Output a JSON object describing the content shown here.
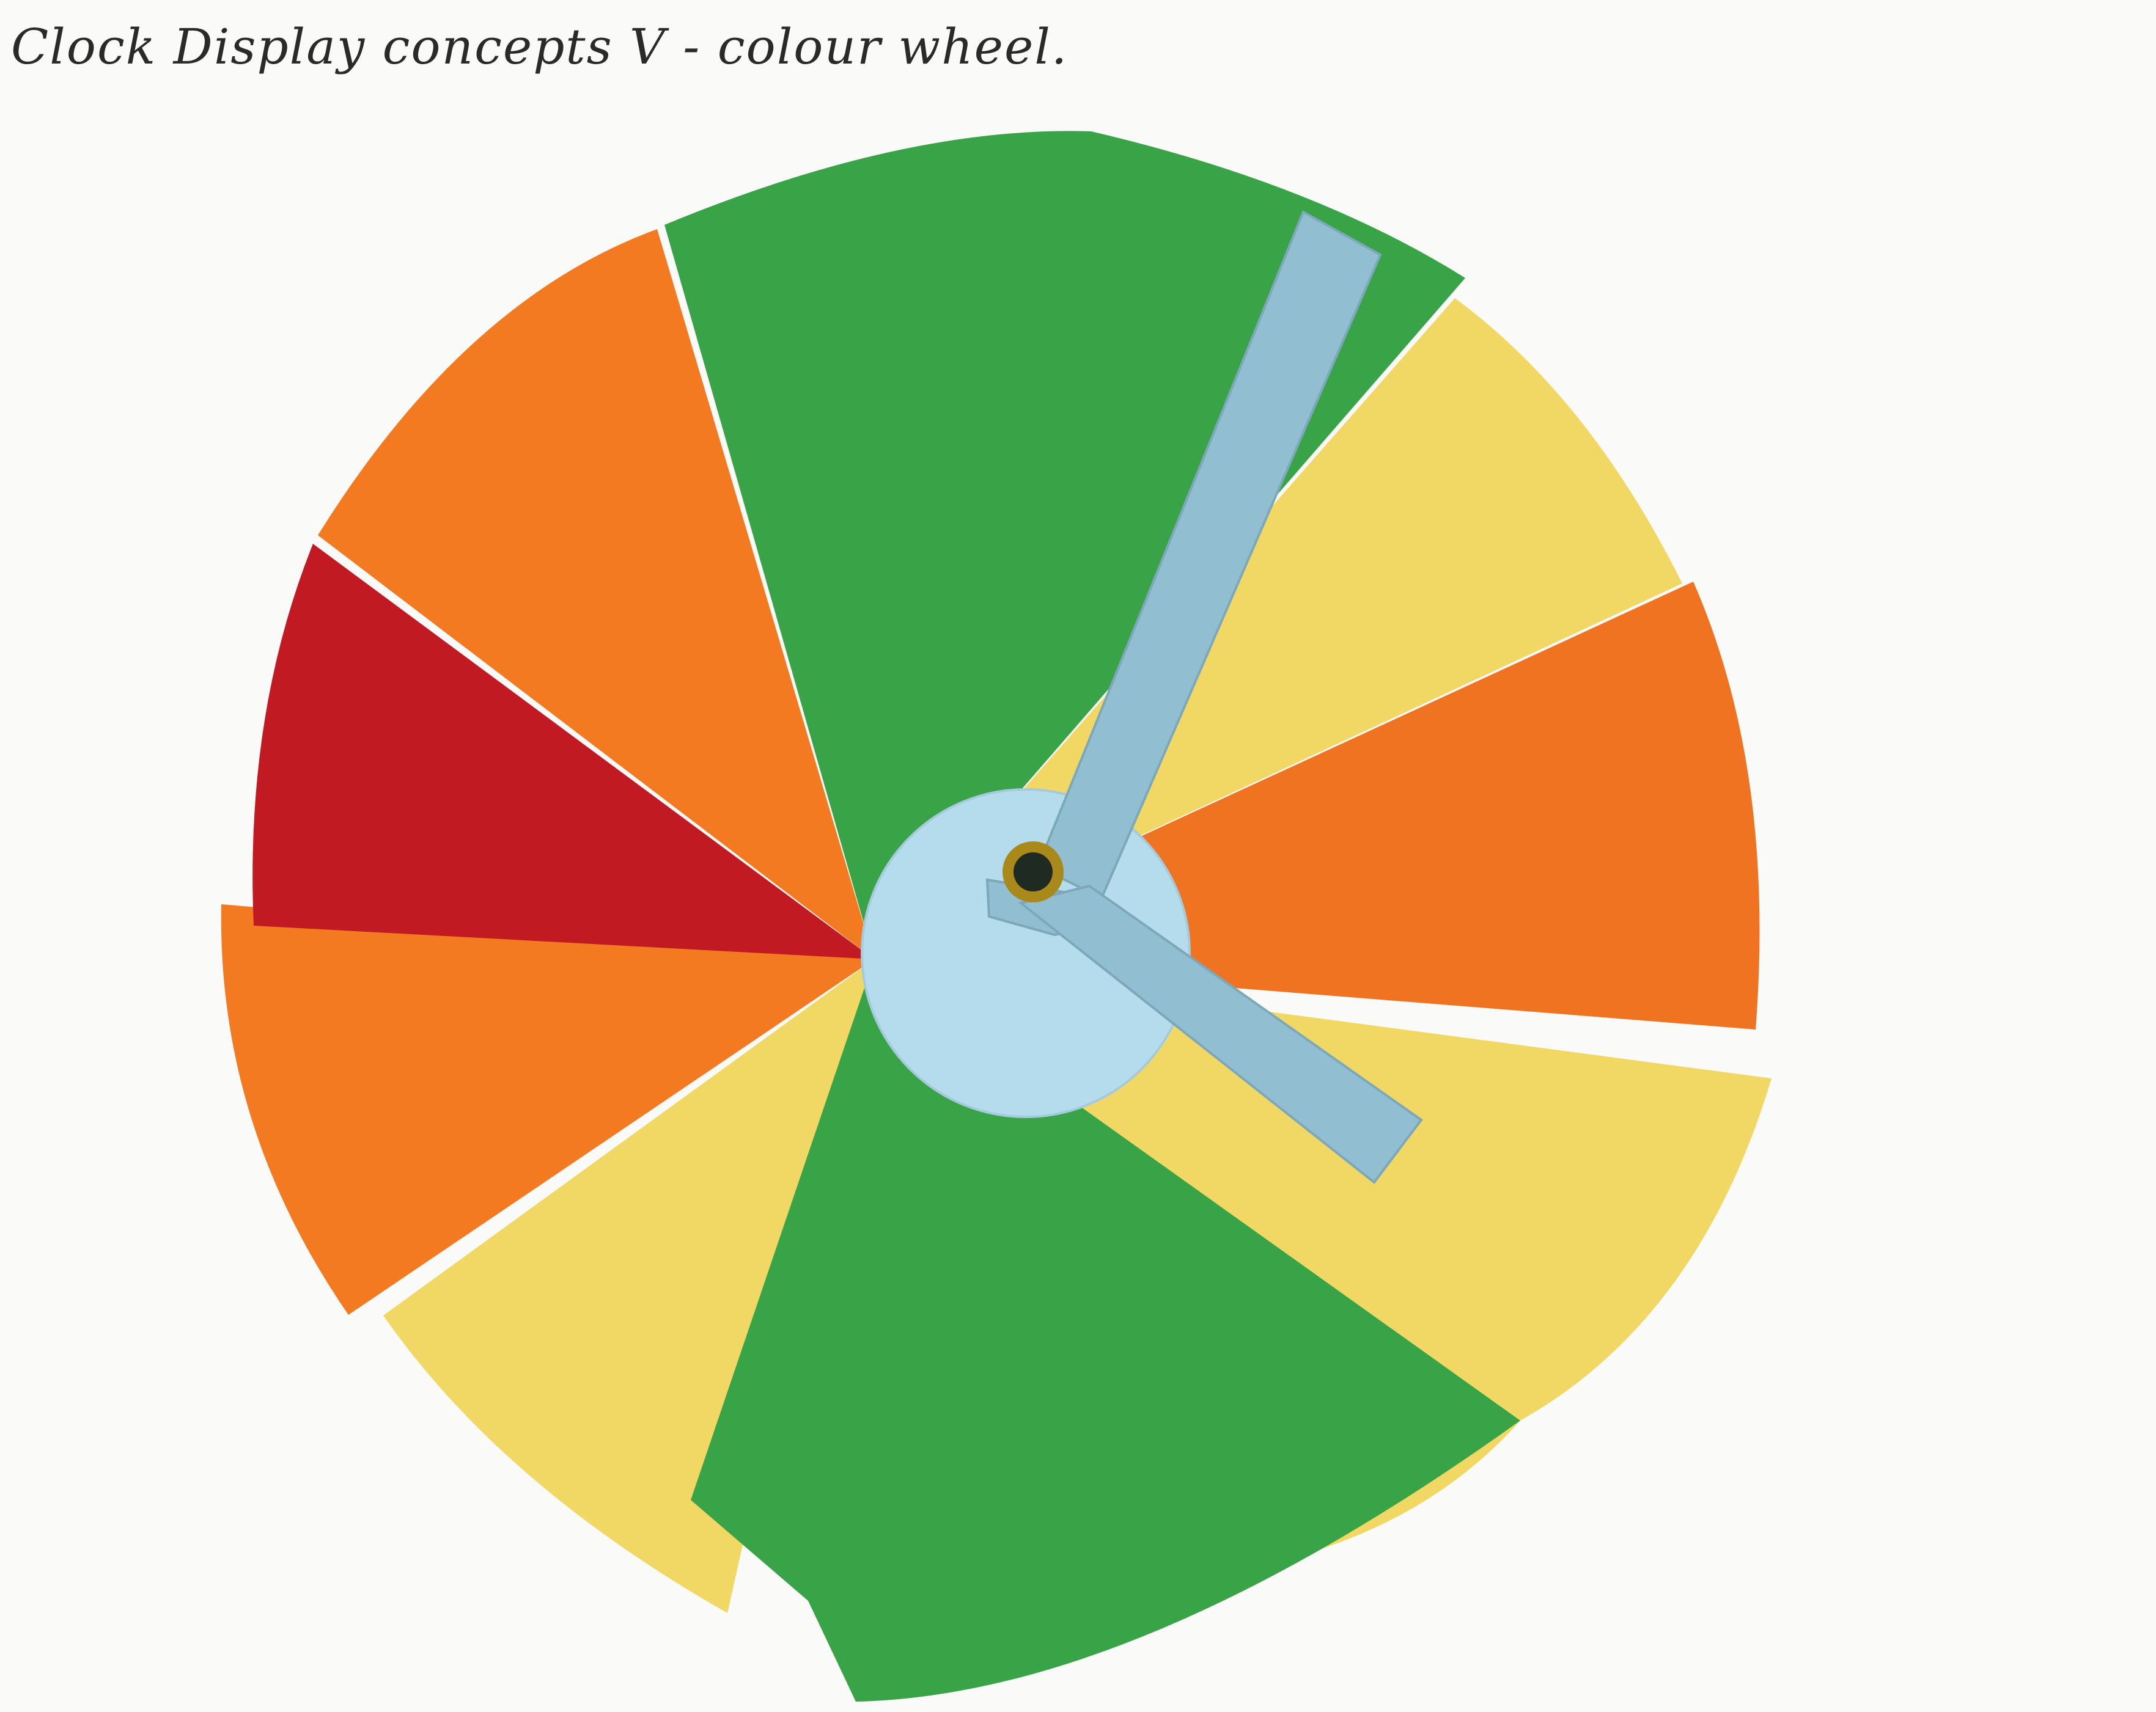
{
  "caption": "Clock Display concepts V - colour wheel.",
  "colors": {
    "background": "#fafaf8",
    "green": "#38a447",
    "orange": "#f47a22",
    "orange_alt": "#ef7320",
    "red": "#c21a22",
    "yellow": "#f1d865",
    "hub": "#b5dcec",
    "clock_hand": "#91bed0",
    "pivot_rivet": "#a8891a"
  },
  "wheel_segments": [
    {
      "id": "green-top",
      "color": "green"
    },
    {
      "id": "yellow-upper-right",
      "color": "yellow"
    },
    {
      "id": "orange-right",
      "color": "orange_alt"
    },
    {
      "id": "yellow-lower-right",
      "color": "yellow"
    },
    {
      "id": "green-bottom",
      "color": "green"
    },
    {
      "id": "yellow-lower-left",
      "color": "yellow"
    },
    {
      "id": "orange-left",
      "color": "orange"
    },
    {
      "id": "red-left",
      "color": "red"
    },
    {
      "id": "orange-upper-left",
      "color": "orange"
    }
  ]
}
